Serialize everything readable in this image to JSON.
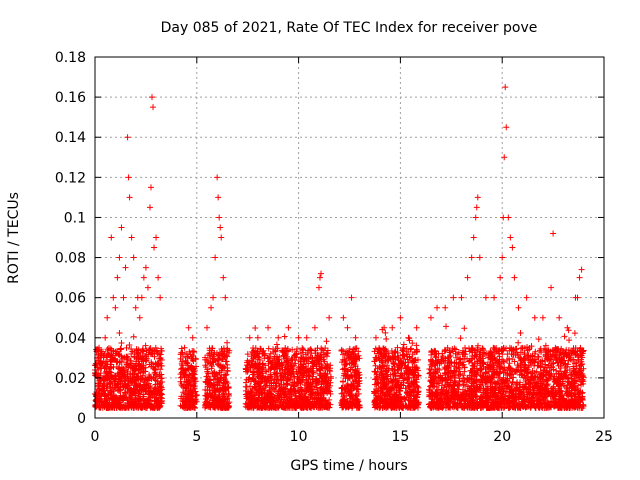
{
  "chart_data": {
    "type": "scatter",
    "title": "Day 085 of 2021, Rate Of TEC Index for receiver pove",
    "xlabel": "GPS time / hours",
    "ylabel": "ROTI / TECUs",
    "xlim": [
      0,
      25
    ],
    "ylim": [
      0,
      0.18
    ],
    "xticks": [
      "0",
      "5",
      "10",
      "15",
      "20",
      "25"
    ],
    "yticks": [
      "0",
      "0.02",
      "0.04",
      "0.06",
      "0.08",
      "0.1",
      "0.12",
      "0.14",
      "0.16",
      "0.18"
    ],
    "grid": true,
    "marker": "plus",
    "color": "#ff0000",
    "coverage_hours": [
      [
        0,
        3.3
      ],
      [
        4.2,
        5.0
      ],
      [
        5.4,
        6.6
      ],
      [
        7.4,
        11.6
      ],
      [
        12.1,
        13.0
      ],
      [
        13.7,
        15.9
      ],
      [
        16.4,
        24.0
      ]
    ],
    "typical_range": [
      0.005,
      0.035
    ],
    "series": [
      {
        "x": [
          0.1,
          0.2,
          0.3,
          0.5,
          0.6,
          0.8,
          0.9,
          1.0,
          1.1,
          1.2,
          1.3,
          1.4,
          1.5,
          1.6,
          1.65,
          1.7,
          1.8,
          1.9,
          2.0,
          2.1,
          2.2,
          2.3,
          2.4,
          2.5,
          2.6,
          2.7,
          2.75,
          2.8,
          2.85,
          2.9,
          3.0,
          3.1,
          3.2,
          4.4,
          4.6,
          4.8,
          5.5,
          5.7,
          5.8,
          5.9,
          6.0,
          6.05,
          6.1,
          6.15,
          6.2,
          6.3,
          6.4,
          7.6,
          8.0,
          8.5,
          9.0,
          9.5,
          10.0,
          10.4,
          10.8,
          11.0,
          11.05,
          11.1,
          11.5,
          12.2,
          12.4,
          12.6,
          12.8,
          13.8,
          14.2,
          14.6,
          15.0,
          15.4,
          15.8,
          16.5,
          16.8,
          17.2,
          17.6,
          18.0,
          18.3,
          18.5,
          18.6,
          18.7,
          18.75,
          18.8,
          18.9,
          19.2,
          19.6,
          19.9,
          20.0,
          20.05,
          20.1,
          20.15,
          20.2,
          20.3,
          20.4,
          20.5,
          20.6,
          20.8,
          21.2,
          21.6,
          22.0,
          22.4,
          22.5,
          22.8,
          23.2,
          23.6,
          23.7,
          23.8,
          23.9
        ],
        "y": [
          0.03,
          0.035,
          0.025,
          0.04,
          0.05,
          0.09,
          0.06,
          0.055,
          0.07,
          0.08,
          0.095,
          0.06,
          0.075,
          0.14,
          0.12,
          0.11,
          0.09,
          0.08,
          0.055,
          0.06,
          0.05,
          0.06,
          0.07,
          0.075,
          0.065,
          0.105,
          0.115,
          0.16,
          0.155,
          0.085,
          0.09,
          0.07,
          0.06,
          0.035,
          0.045,
          0.04,
          0.045,
          0.055,
          0.06,
          0.08,
          0.12,
          0.11,
          0.1,
          0.095,
          0.09,
          0.07,
          0.06,
          0.04,
          0.04,
          0.045,
          0.04,
          0.045,
          0.04,
          0.04,
          0.045,
          0.065,
          0.07,
          0.072,
          0.05,
          0.05,
          0.045,
          0.06,
          0.04,
          0.04,
          0.045,
          0.045,
          0.05,
          0.04,
          0.045,
          0.05,
          0.055,
          0.055,
          0.06,
          0.06,
          0.07,
          0.08,
          0.09,
          0.1,
          0.105,
          0.11,
          0.08,
          0.06,
          0.06,
          0.07,
          0.08,
          0.1,
          0.13,
          0.165,
          0.145,
          0.1,
          0.09,
          0.085,
          0.07,
          0.055,
          0.06,
          0.05,
          0.05,
          0.065,
          0.092,
          0.05,
          0.045,
          0.06,
          0.06,
          0.07,
          0.074
        ]
      }
    ]
  }
}
